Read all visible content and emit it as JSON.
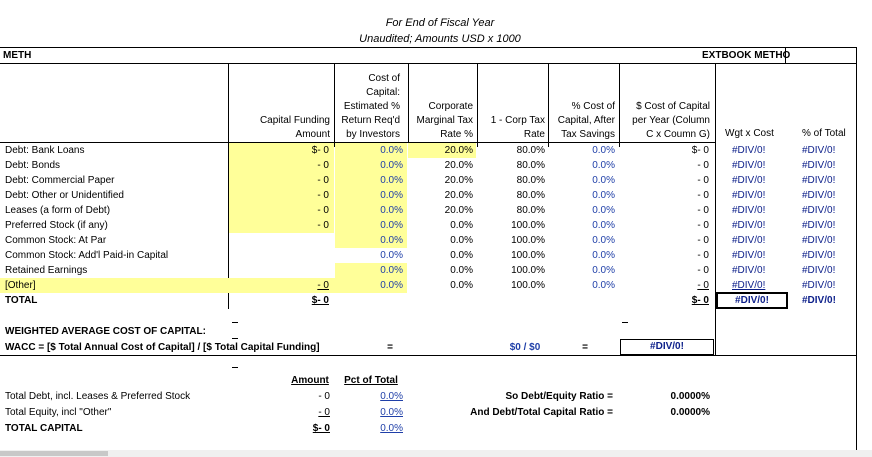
{
  "top": {
    "fiscal_line": "For End of Fiscal Year",
    "units_line": "Unaudited; Amounts USD x 1000",
    "left_heading_fragment": "METH",
    "right_heading_fragment": "EXTBOOK METHO"
  },
  "headers": {
    "col_b": [
      "Capital Funding",
      "Amount"
    ],
    "col_c": [
      "Cost of",
      "Capital:",
      "Estimated %",
      "Return Req'd",
      "by Investors"
    ],
    "col_d": [
      "Corporate",
      "Marginal Tax",
      "Rate %"
    ],
    "col_e": [
      "1 - Corp Tax",
      "Rate"
    ],
    "col_f": [
      "% Cost of",
      "Capital, After",
      "Tax Savings"
    ],
    "col_g": [
      "$ Cost of Capital",
      "per Year (Column",
      "C x Coumn G)"
    ],
    "col_h": "Wgt x Cost",
    "col_i": "% of Total"
  },
  "rows": [
    {
      "label": "Debt: Bank Loans",
      "amount": "$- 0",
      "ret": "0.0%",
      "tax": "20.0%",
      "one_minus": "80.0%",
      "after": "0.0%",
      "cost": "$- 0",
      "wgt": "#DIV/0!",
      "pct": "#DIV/0!"
    },
    {
      "label": "Debt: Bonds",
      "amount": "- 0",
      "ret": "0.0%",
      "tax": "20.0%",
      "one_minus": "80.0%",
      "after": "0.0%",
      "cost": "- 0",
      "wgt": "#DIV/0!",
      "pct": "#DIV/0!"
    },
    {
      "label": "Debt: Commercial Paper",
      "amount": "- 0",
      "ret": "0.0%",
      "tax": "20.0%",
      "one_minus": "80.0%",
      "after": "0.0%",
      "cost": "- 0",
      "wgt": "#DIV/0!",
      "pct": "#DIV/0!"
    },
    {
      "label": "Debt: Other or Unidentified",
      "amount": "- 0",
      "ret": "0.0%",
      "tax": "20.0%",
      "one_minus": "80.0%",
      "after": "0.0%",
      "cost": "- 0",
      "wgt": "#DIV/0!",
      "pct": "#DIV/0!"
    },
    {
      "label": "Leases (a form of Debt)",
      "amount": "- 0",
      "ret": "0.0%",
      "tax": "20.0%",
      "one_minus": "80.0%",
      "after": "0.0%",
      "cost": "- 0",
      "wgt": "#DIV/0!",
      "pct": "#DIV/0!"
    },
    {
      "label": "Preferred Stock (if any)",
      "amount": "- 0",
      "ret": "0.0%",
      "tax": "0.0%",
      "one_minus": "100.0%",
      "after": "0.0%",
      "cost": "- 0",
      "wgt": "#DIV/0!",
      "pct": "#DIV/0!"
    },
    {
      "label": "Common Stock: At Par",
      "amount": "",
      "ret": "0.0%",
      "tax": "0.0%",
      "one_minus": "100.0%",
      "after": "0.0%",
      "cost": "- 0",
      "wgt": "#DIV/0!",
      "pct": "#DIV/0!"
    },
    {
      "label": "Common Stock: Add'l Paid-in Capital",
      "amount": "",
      "ret": "0.0%",
      "tax": "0.0%",
      "one_minus": "100.0%",
      "after": "0.0%",
      "cost": "- 0",
      "wgt": "#DIV/0!",
      "pct": "#DIV/0!"
    },
    {
      "label": "Retained Earnings",
      "amount": "",
      "ret": "0.0%",
      "tax": "0.0%",
      "one_minus": "100.0%",
      "after": "0.0%",
      "cost": "- 0",
      "wgt": "#DIV/0!",
      "pct": "#DIV/0!"
    },
    {
      "label": "[Other]",
      "amount": "- 0",
      "ret": "0.0%",
      "tax": "0.0%",
      "one_minus": "100.0%",
      "after": "0.0%",
      "cost": "- 0",
      "wgt": "#DIV/0!",
      "pct": "#DIV/0!"
    }
  ],
  "total": {
    "label": "TOTAL",
    "amount": "$- 0",
    "cost": "$- 0",
    "wgt": "#DIV/0!",
    "pct": "#DIV/0!"
  },
  "wacc": {
    "title": "WEIGHTED AVERAGE COST OF CAPITAL:",
    "formula": "WACC = [$ Total Annual Cost of Capital] / [$ Total Capital Funding]",
    "eq1": "=",
    "ratio": "$0 / $0",
    "eq2": "=",
    "result": "#DIV/0!"
  },
  "summary": {
    "amount_header": "Amount",
    "pct_header": "Pct of Total",
    "rows": [
      {
        "label": "Total Debt, incl. Leases & Preferred Stock",
        "amount": "- 0",
        "pct": "0.0%"
      },
      {
        "label": "Total Equity, incl \"Other\"",
        "amount": "- 0",
        "pct": "0.0%"
      },
      {
        "label": "TOTAL CAPITAL",
        "amount": "$- 0",
        "pct": "0.0%"
      }
    ],
    "de_label": "So Debt/Equity Ratio =",
    "de_value": "0.0000%",
    "dt_label": "And Debt/Total Capital Ratio =",
    "dt_value": "0.0000%"
  }
}
